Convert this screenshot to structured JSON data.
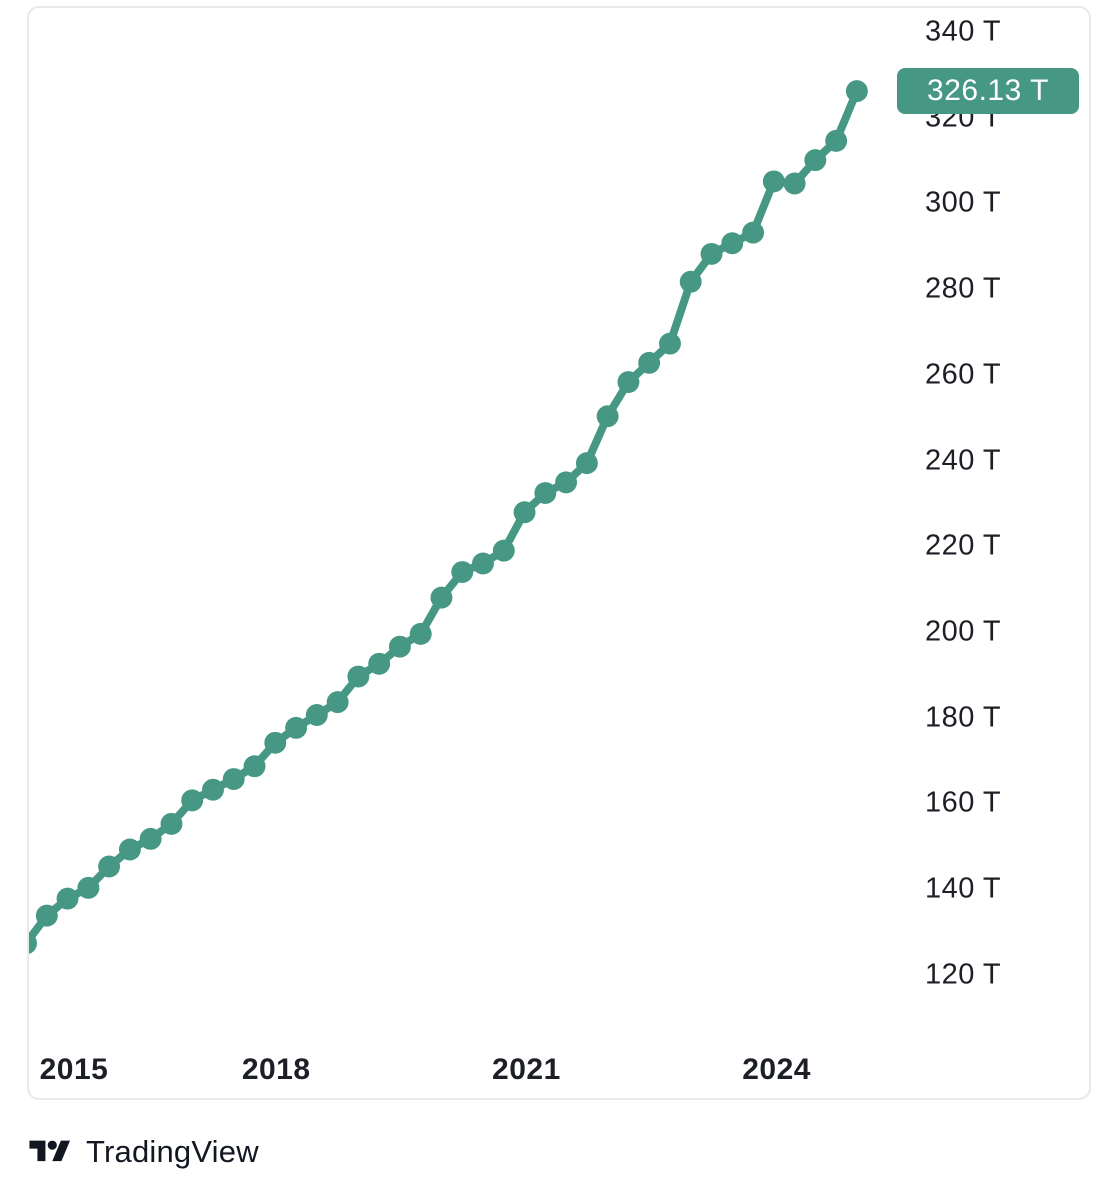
{
  "chart_data": {
    "type": "line",
    "title": "",
    "marker": "circle",
    "legend": "none",
    "grid": false,
    "x_axis_side": "bottom",
    "y_axis_side": "right",
    "x": [
      2015.0,
      2015.25,
      2015.5,
      2015.75,
      2016.0,
      2016.25,
      2016.5,
      2016.75,
      2017.0,
      2017.25,
      2017.5,
      2017.75,
      2018.0,
      2018.25,
      2018.5,
      2018.75,
      2019.0,
      2019.25,
      2019.5,
      2019.75,
      2020.0,
      2020.25,
      2020.5,
      2020.75,
      2021.0,
      2021.25,
      2021.5,
      2021.75,
      2022.0,
      2022.25,
      2022.5,
      2022.75,
      2023.0,
      2023.25,
      2023.5,
      2023.75,
      2024.0,
      2024.25,
      2024.5,
      2024.75,
      2025.0
    ],
    "values": [
      126.5,
      133,
      137,
      139.5,
      144.5,
      148.5,
      151,
      154.5,
      160,
      162.5,
      165,
      168,
      173.5,
      177,
      180,
      183,
      189,
      192,
      196,
      199,
      207.5,
      213.5,
      215.5,
      218.5,
      227.5,
      232,
      234.5,
      239,
      250,
      258,
      262.5,
      267,
      281.5,
      288,
      290.5,
      293,
      305,
      304.5,
      310,
      314.5,
      326.13
    ],
    "unit_suffix": "T",
    "last_value": 326.13,
    "last_value_label": "326.13 T",
    "y_ticks": [
      {
        "value": 340,
        "label": "340 T"
      },
      {
        "value": 320,
        "label": "320 T"
      },
      {
        "value": 300,
        "label": "300 T"
      },
      {
        "value": 280,
        "label": "280 T"
      },
      {
        "value": 260,
        "label": "260 T"
      },
      {
        "value": 240,
        "label": "240 T"
      },
      {
        "value": 220,
        "label": "220 T"
      },
      {
        "value": 200,
        "label": "200 T"
      },
      {
        "value": 180,
        "label": "180 T"
      },
      {
        "value": 160,
        "label": "160 T"
      },
      {
        "value": 140,
        "label": "140 T"
      },
      {
        "value": 120,
        "label": "120 T"
      }
    ],
    "x_ticks": [
      {
        "year": 2015,
        "label": "2015"
      },
      {
        "year": 2018,
        "label": "2018"
      },
      {
        "year": 2021,
        "label": "2021"
      },
      {
        "year": 2024,
        "label": "2024"
      }
    ],
    "ylim": [
      90,
      346
    ],
    "xlim": [
      2015.0,
      2027.8
    ]
  },
  "badge": {
    "label": "326.13 T"
  },
  "footer": {
    "brand": "TradingView"
  },
  "colors": {
    "line": "#469884",
    "marker": "#469884",
    "badge_bg": "#469884",
    "badge_text": "#ffffff",
    "axis_text": "#1c1f26",
    "panel_border": "#e9e9e9",
    "background": "#ffffff",
    "logo": "#131722"
  }
}
